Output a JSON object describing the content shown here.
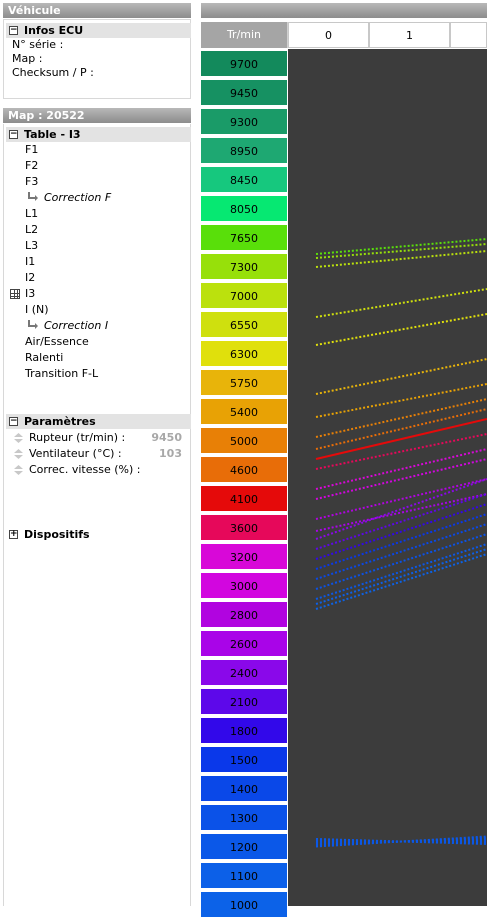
{
  "vehicle_panel": {
    "title": "Véhicule",
    "section_title": "Infos ECU",
    "rows": [
      "N° série :",
      "Map :",
      "Checksum / P :"
    ]
  },
  "map_panel": {
    "title": "Map : 20522",
    "table_title": "Table - I3",
    "items": [
      "F1",
      "F2",
      "F3",
      "Correction F",
      "L1",
      "L2",
      "L3",
      "I1",
      "I2",
      "I3",
      "I (N)",
      "Correction I",
      "Air/Essence",
      "Ralenti",
      "Transition F-L"
    ],
    "params_title": "Paramètres",
    "params": [
      {
        "label": "Rupteur (tr/min) :",
        "value": "9450"
      },
      {
        "label": "Ventilateur (°C) :",
        "value": "103"
      },
      {
        "label": "Correc. vitesse (%) :",
        "value": ""
      }
    ],
    "devices_title": "Dispositifs"
  },
  "grid": {
    "corner_label": "Tr/min",
    "columns": [
      "0",
      "1"
    ],
    "rpm_rows": [
      {
        "label": "9700",
        "color": "#138a5c"
      },
      {
        "label": "9450",
        "color": "#169162"
      },
      {
        "label": "9300",
        "color": "#1a9b68"
      },
      {
        "label": "8950",
        "color": "#1ea872"
      },
      {
        "label": "8450",
        "color": "#16c87e"
      },
      {
        "label": "8050",
        "color": "#06e872"
      },
      {
        "label": "7650",
        "color": "#59df0a"
      },
      {
        "label": "7300",
        "color": "#97e00a"
      },
      {
        "label": "7000",
        "color": "#bbe10d"
      },
      {
        "label": "6550",
        "color": "#cfe00e"
      },
      {
        "label": "6300",
        "color": "#e0e00c"
      },
      {
        "label": "5750",
        "color": "#e8b40a"
      },
      {
        "label": "5400",
        "color": "#e8a205"
      },
      {
        "label": "5000",
        "color": "#e88006"
      },
      {
        "label": "4600",
        "color": "#e86d08"
      },
      {
        "label": "4100",
        "color": "#e50a0a"
      },
      {
        "label": "3600",
        "color": "#e6085a"
      },
      {
        "label": "3200",
        "color": "#d808d8"
      },
      {
        "label": "3000",
        "color": "#d206df"
      },
      {
        "label": "2800",
        "color": "#b104e0"
      },
      {
        "label": "2600",
        "color": "#a904e8"
      },
      {
        "label": "2400",
        "color": "#8a08ea"
      },
      {
        "label": "2100",
        "color": "#5d08ea"
      },
      {
        "label": "1800",
        "color": "#3208ea"
      },
      {
        "label": "1500",
        "color": "#0a38ea"
      },
      {
        "label": "1400",
        "color": "#0a48e8"
      },
      {
        "label": "1300",
        "color": "#0b52e8"
      },
      {
        "label": "1200",
        "color": "#0b58e8"
      },
      {
        "label": "1100",
        "color": "#0c60e8"
      },
      {
        "label": "1000",
        "color": "#0c62e8"
      }
    ]
  }
}
